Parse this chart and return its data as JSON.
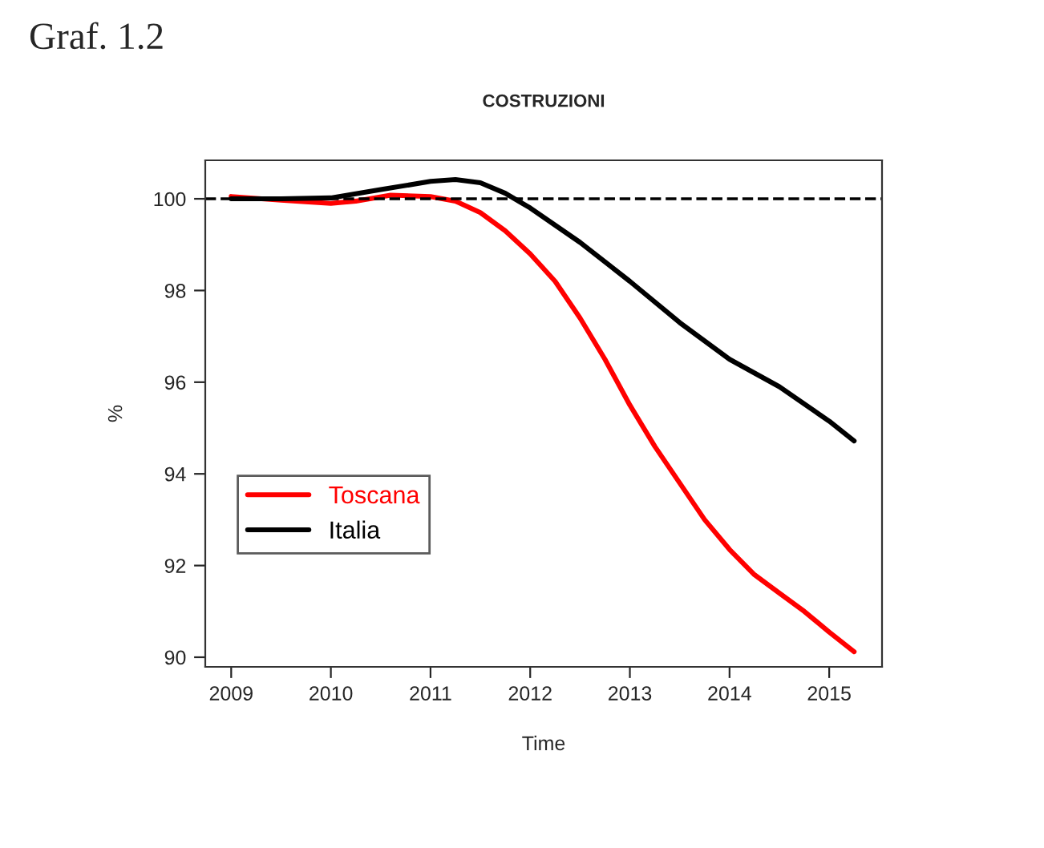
{
  "chart_data": {
    "type": "line",
    "title": "COSTRUZIONI",
    "xlabel": "Time",
    "ylabel": "%",
    "annotations": [
      "Graf. 1.2"
    ],
    "series": [
      {
        "name": "Toscana",
        "color": "#ff0000",
        "x": [
          2009,
          2009.5,
          2010,
          2010.25,
          2010.6,
          2011,
          2011.25,
          2011.5,
          2011.75,
          2012,
          2012.25,
          2012.5,
          2012.75,
          2013,
          2013.25,
          2013.5,
          2013.75,
          2014,
          2014.25,
          2014.5,
          2014.75,
          2015,
          2015.25
        ],
        "values": [
          100.05,
          99.97,
          99.9,
          99.95,
          100.08,
          100.05,
          99.95,
          99.7,
          99.3,
          98.8,
          98.2,
          97.4,
          96.5,
          95.5,
          94.6,
          93.8,
          93.0,
          92.35,
          91.8,
          91.4,
          91.0,
          90.55,
          90.12
        ]
      },
      {
        "name": "Italia",
        "color": "#000000",
        "x": [
          2009,
          2009.5,
          2010,
          2010.5,
          2011,
          2011.25,
          2011.5,
          2011.75,
          2012,
          2012.5,
          2013,
          2013.5,
          2014,
          2014.5,
          2015,
          2015.25
        ],
        "values": [
          100,
          100,
          100.02,
          100.2,
          100.38,
          100.42,
          100.35,
          100.12,
          99.8,
          99.05,
          98.2,
          97.3,
          96.5,
          95.9,
          95.15,
          94.72
        ]
      }
    ],
    "xlim": [
      2008.74,
      2015.53
    ],
    "xticks": [
      2009,
      2010,
      2011,
      2012,
      2013,
      2014,
      2015
    ],
    "ylim": [
      89.79,
      100.84
    ],
    "yticks": [
      90,
      92,
      94,
      96,
      98,
      100
    ],
    "ref_lines": [
      {
        "axis": "y",
        "value": 100,
        "color": "#000000",
        "line_style": "dashed"
      }
    ],
    "grid": false,
    "legend": "lower left",
    "line_style": "solid",
    "marker": "none"
  }
}
